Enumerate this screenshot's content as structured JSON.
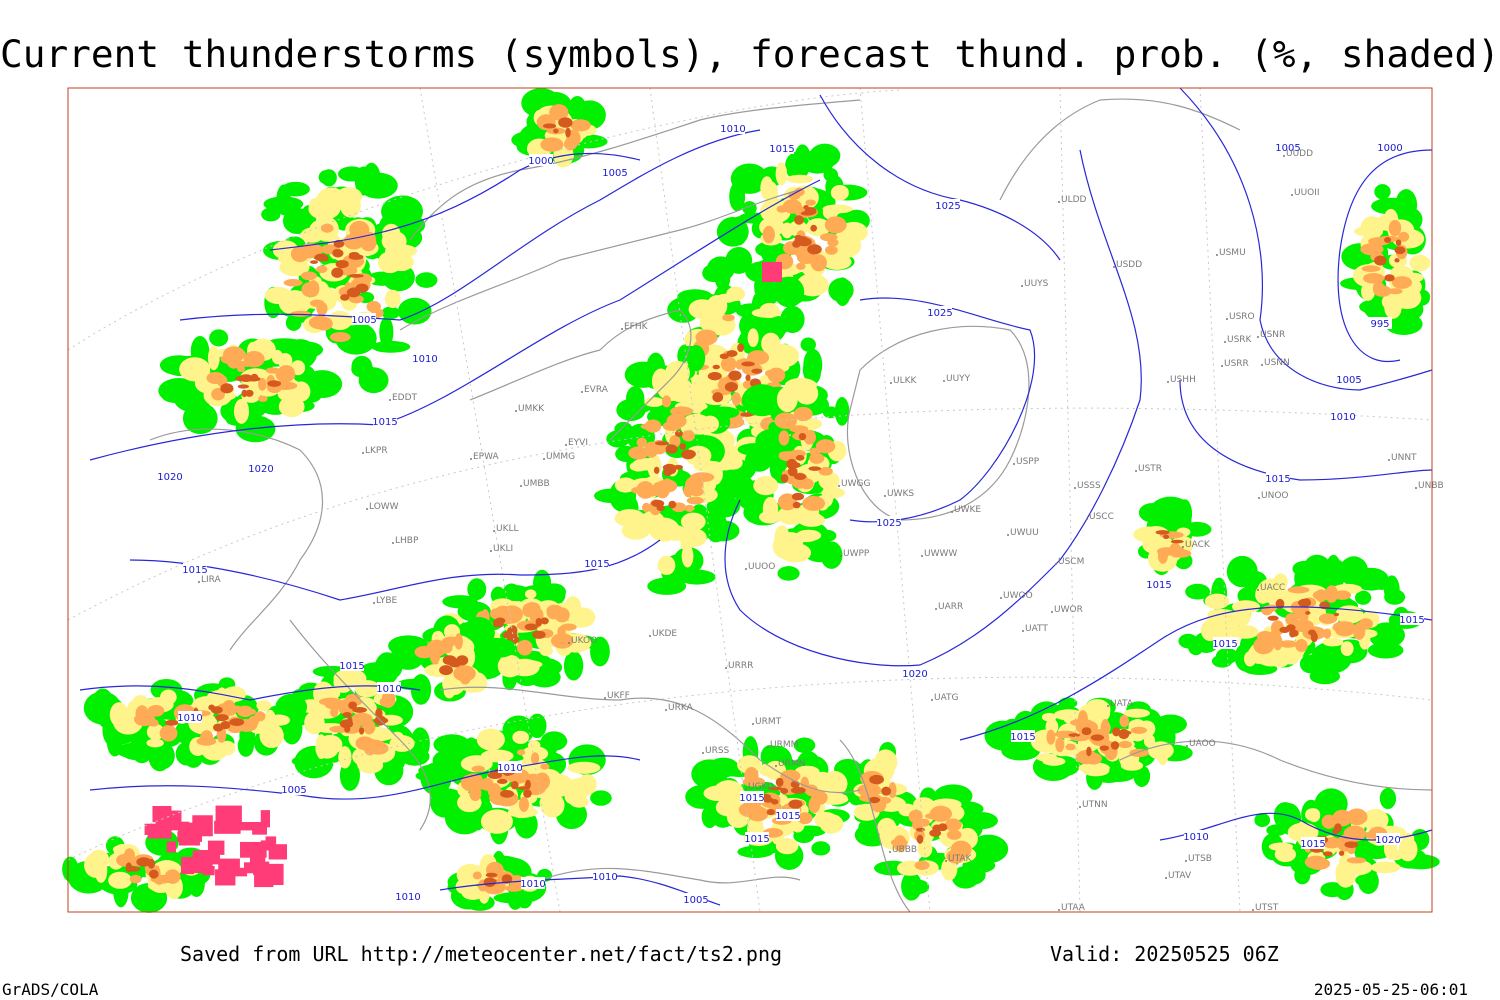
{
  "header": {
    "title": "Current thunderstorms (symbols), forecast thund. prob. (%, shaded)"
  },
  "footer": {
    "source": "Saved from URL http://meteocenter.net/fact/ts2.png",
    "valid": "Valid: 20250525 06Z",
    "software": "GrADS/COLA",
    "timestamp": "2025-05-25-06:01"
  },
  "isobar_labels": [
    1010,
    1015,
    1000,
    1005,
    1025,
    1005,
    1010,
    1015,
    1025,
    1020,
    1020,
    1015,
    1015,
    1025,
    1020,
    1015,
    1010,
    1010,
    1005,
    1010,
    1015,
    1015,
    1015,
    1010,
    1010,
    1005,
    1010,
    1015,
    1015,
    1015,
    1015,
    1015,
    1010,
    1005,
    995,
    1000,
    1005,
    1020,
    1015,
    1010
  ],
  "stations": [
    "ULDD",
    "USDD",
    "USMU",
    "UUYS",
    "USRO",
    "USRK",
    "USNR",
    "USRR",
    "USNN",
    "USHH",
    "ULKK",
    "UUYY",
    "USPP",
    "USTR",
    "USSS",
    "UNNT",
    "UNBB",
    "UNOO",
    "USCC",
    "UWKS",
    "UWKE",
    "UWGG",
    "UWUU",
    "UWWW",
    "UWPP",
    "UUOO",
    "USCM",
    "UACK",
    "UACC",
    "UWOO",
    "UWOR",
    "UARR",
    "UATT",
    "UATG",
    "UATA",
    "UAOO",
    "UTNN",
    "UMKK",
    "UMMG",
    "EPWA",
    "UMBB",
    "EYVI",
    "LKPR",
    "LOWW",
    "LHBP",
    "LYBE",
    "UKLL",
    "UKLI",
    "UKOO",
    "UKDE",
    "UKFF",
    "URKA",
    "URRR",
    "URMT",
    "URMM",
    "URMN",
    "URSS",
    "UGKO",
    "UBBB",
    "UTAK",
    "UTAV",
    "UTSB",
    "UTAA",
    "UTST",
    "EFHK",
    "EVRA",
    "EDDT",
    "LIRA",
    "UUOII",
    "UUDD"
  ]
}
